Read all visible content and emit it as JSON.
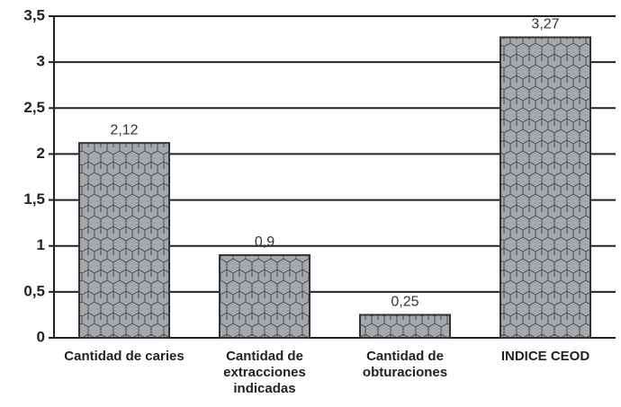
{
  "chart_data": {
    "type": "bar",
    "categories": [
      "Cantidad de caries",
      "Cantidad de extracciones indicadas",
      "Cantidad de obturaciones",
      "INDICE CEOD"
    ],
    "values": [
      2.12,
      0.9,
      0.25,
      3.27
    ],
    "value_labels": [
      "2,12",
      "0,9",
      "0,25",
      "3,27"
    ],
    "color": "#a4a8ad",
    "ylim": [
      0,
      3.5
    ],
    "yticks": [
      0,
      {
        "value": 0.5,
        "label": "0,5"
      },
      1,
      {
        "value": 1.5,
        "label": "1,5"
      },
      2,
      {
        "value": 2.5,
        "label": "2,5"
      },
      3,
      {
        "value": 3.5,
        "label": "3,5"
      }
    ],
    "grid": true
  }
}
